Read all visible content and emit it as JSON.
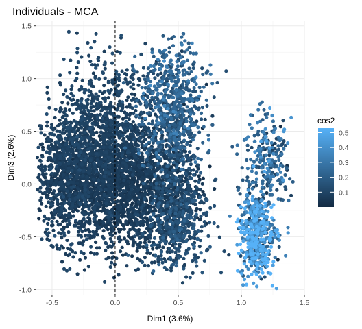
{
  "chart_data": {
    "type": "scatter",
    "title": "Individuals - MCA",
    "xlabel": "Dim1 (3.6%)",
    "ylabel": "Dim3 (2.6%)",
    "xlim": [
      -0.63,
      1.5
    ],
    "ylim": [
      -1.05,
      1.55
    ],
    "x_ticks": [
      -0.5,
      0.0,
      0.5,
      1.0,
      1.5
    ],
    "x_tick_labels": [
      "-0.5",
      "0.0",
      "0.5",
      "1.0",
      "1.5"
    ],
    "y_ticks": [
      -1.0,
      -0.5,
      0.0,
      0.5,
      1.0,
      1.5
    ],
    "y_tick_labels": [
      "-1.0",
      "-0.5",
      "0.0",
      "0.5",
      "1.0",
      "1.5"
    ],
    "reference_lines": {
      "x": 0,
      "y": 0,
      "style": "dashed"
    },
    "grid": true,
    "legend": {
      "title": "cos2",
      "type": "colorbar",
      "placement": "right",
      "range": [
        0.0,
        0.53
      ],
      "ticks": [
        0.1,
        0.2,
        0.3,
        0.4,
        0.5
      ],
      "tick_labels": [
        "0.1",
        "0.2",
        "0.3",
        "0.4",
        "0.5"
      ],
      "color_low": "#132b43",
      "color_high": "#56b1f7"
    },
    "point_clusters": [
      {
        "cx": -0.38,
        "cy": 0.05,
        "sx": 0.13,
        "sy": 0.3,
        "n": 900,
        "cos2_mean": 0.06
      },
      {
        "cx": -0.1,
        "cy": 0.3,
        "sx": 0.18,
        "sy": 0.4,
        "n": 1300,
        "cos2_mean": 0.05
      },
      {
        "cx": 0.15,
        "cy": -0.05,
        "sx": 0.2,
        "sy": 0.3,
        "n": 1200,
        "cos2_mean": 0.04
      },
      {
        "cx": 0.45,
        "cy": 0.65,
        "sx": 0.13,
        "sy": 0.35,
        "n": 800,
        "cos2_mean": 0.15
      },
      {
        "cx": 0.5,
        "cy": -0.3,
        "sx": 0.12,
        "sy": 0.25,
        "n": 600,
        "cos2_mean": 0.1
      },
      {
        "cx": 1.12,
        "cy": -0.48,
        "sx": 0.07,
        "sy": 0.2,
        "n": 550,
        "cos2_mean": 0.35
      },
      {
        "cx": 1.2,
        "cy": 0.25,
        "sx": 0.1,
        "sy": 0.2,
        "n": 250,
        "cos2_mean": 0.22
      }
    ]
  }
}
